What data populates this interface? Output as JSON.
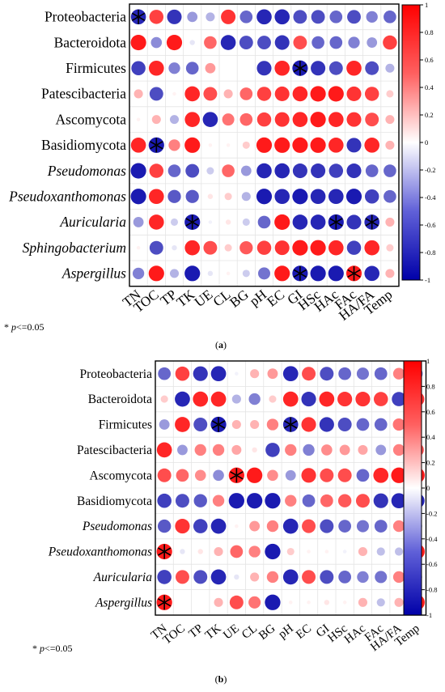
{
  "chart_data": [
    {
      "type": "heatmap",
      "panel_label": "(a)",
      "footnote": "* p<=0.05",
      "columns": [
        "TN",
        "TOC",
        "TP",
        "TK",
        "UE",
        "CL",
        "BG",
        "pH",
        "EC",
        "GI",
        "HSc",
        "HAc",
        "FAc",
        "HA/FA",
        "Temp"
      ],
      "rows": [
        "Proteobacteria",
        "Bacteroidota",
        "Firmicutes",
        "Patescibacteria",
        "Ascomycota",
        "Basidiomycota",
        "Pseudomonas",
        "Pseudoxanthomonas",
        "Auricularia",
        "Sphingobacterium",
        "Aspergillus"
      ],
      "italic_rows": [
        "Pseudomonas",
        "Pseudoxanthomonas",
        "Auricularia",
        "Sphingobacterium",
        "Aspergillus"
      ],
      "values": [
        [
          -0.85,
          0.75,
          -0.8,
          -0.4,
          -0.3,
          0.8,
          -0.6,
          -0.85,
          -0.85,
          -0.7,
          -0.7,
          -0.6,
          -0.7,
          -0.5,
          -0.6
        ],
        [
          0.9,
          -0.45,
          0.9,
          -0.1,
          0.6,
          -0.85,
          -0.7,
          -0.7,
          -0.8,
          0.7,
          -0.6,
          -0.6,
          -0.5,
          -0.4,
          0.75
        ],
        [
          -0.75,
          0.85,
          -0.5,
          -0.6,
          0.4,
          0,
          0,
          -0.8,
          0.85,
          -0.9,
          -0.8,
          -0.7,
          0.85,
          -0.7,
          -0.3
        ],
        [
          0.3,
          -0.7,
          0.05,
          0.85,
          0.7,
          0.3,
          0.6,
          0.75,
          0.8,
          0.85,
          0.9,
          0.9,
          0.8,
          0.75,
          0.2
        ],
        [
          0.05,
          0.3,
          -0.3,
          0.85,
          -0.85,
          0.55,
          0.6,
          0.75,
          0.8,
          0.85,
          0.9,
          0.85,
          0.8,
          0.7,
          0.3
        ],
        [
          0.85,
          -0.9,
          0.5,
          0.9,
          0.05,
          0.05,
          0.2,
          0.9,
          0.9,
          0.9,
          0.9,
          0.85,
          -0.8,
          0.85,
          0.3
        ],
        [
          -0.9,
          0.75,
          -0.6,
          -0.7,
          -0.2,
          0.6,
          -0.4,
          -0.85,
          -0.85,
          -0.8,
          -0.8,
          -0.75,
          -0.8,
          -0.6,
          -0.6
        ],
        [
          -0.9,
          0.85,
          -0.65,
          -0.65,
          0.1,
          0.2,
          -0.3,
          -0.9,
          -0.85,
          -0.9,
          -0.85,
          -0.85,
          -0.9,
          -0.75,
          -0.6
        ],
        [
          -0.4,
          0.85,
          -0.2,
          -0.9,
          -0.05,
          0.1,
          -0.2,
          -0.6,
          0.9,
          -0.85,
          -0.85,
          -0.9,
          -0.8,
          -0.85,
          0.3
        ],
        [
          0.05,
          -0.7,
          -0.1,
          0.85,
          0.7,
          0.2,
          0.65,
          0.75,
          0.8,
          0.9,
          0.9,
          0.85,
          -0.75,
          0.85,
          0.2
        ],
        [
          -0.5,
          0.9,
          -0.3,
          -0.9,
          -0.1,
          0.05,
          -0.2,
          -0.55,
          0.9,
          -0.9,
          -0.9,
          -0.9,
          0.9,
          -0.85,
          0.3
        ]
      ],
      "significant": [
        [
          0,
          0
        ],
        [
          2,
          9
        ],
        [
          5,
          1
        ],
        [
          8,
          3
        ],
        [
          8,
          11
        ],
        [
          8,
          13
        ],
        [
          10,
          9
        ],
        [
          10,
          12
        ]
      ],
      "colorbar_ticks": [
        1,
        0.8,
        0.6,
        0.4,
        0.2,
        0,
        -0.2,
        -0.4,
        -0.6,
        -0.8,
        -1
      ],
      "colorbar_tick_labels": [
        "1",
        "0.8",
        "0.6",
        "0.4",
        "0.2",
        "0",
        "-0.2",
        "-0.4",
        "-0.6",
        "-0.8",
        "-1"
      ],
      "range": [
        -1,
        1
      ],
      "colors": {
        "negative": "#0000a8",
        "neutral": "#ffffff",
        "positive": "#ff0000"
      }
    },
    {
      "type": "heatmap",
      "panel_label": "(b)",
      "footnote": "* p<=0.05",
      "columns": [
        "TN",
        "TOC",
        "TP",
        "TK",
        "UE",
        "CL",
        "BG",
        "pH",
        "EC",
        "GI",
        "HSc",
        "HAc",
        "FAc",
        "HA/FA",
        "Temp"
      ],
      "rows": [
        "Proteobacteria",
        "Bacteroidota",
        "Firmicutes",
        "Patescibacteria",
        "Ascomycota",
        "Basidiomycota",
        "Pseudomonas",
        "Pseudoxanthomonas",
        "Auricularia",
        "Aspergillus"
      ],
      "italic_rows": [
        "Pseudomonas",
        "Pseudoxanthomonas",
        "Auricularia",
        "Aspergillus"
      ],
      "values": [
        [
          -0.6,
          0.75,
          -0.8,
          -0.85,
          -0.05,
          0.3,
          0.4,
          -0.85,
          0.7,
          -0.7,
          -0.6,
          -0.55,
          -0.6,
          0.5,
          -0.5
        ],
        [
          0.2,
          -0.85,
          0.85,
          0.85,
          -0.3,
          -0.5,
          0.2,
          0.85,
          -0.8,
          0.85,
          0.8,
          0.8,
          0.75,
          -0.75,
          0.8
        ],
        [
          -0.4,
          0.85,
          -0.7,
          -0.9,
          0.3,
          0.3,
          0.5,
          -0.85,
          0.8,
          -0.8,
          -0.7,
          -0.6,
          -0.6,
          0.55,
          0
        ],
        [
          0.85,
          -0.4,
          0.5,
          0.5,
          0.35,
          0.1,
          -0.75,
          0.5,
          -0.5,
          0.45,
          0.4,
          0.35,
          -0.4,
          0.5,
          0.7
        ],
        [
          0.7,
          0.6,
          0.45,
          -0.45,
          0.9,
          0.9,
          0.45,
          -0.4,
          0.8,
          0.7,
          0.7,
          -0.6,
          0.85,
          0.9,
          0.9
        ],
        [
          -0.75,
          -0.7,
          -0.65,
          0.5,
          -0.9,
          -0.9,
          -0.9,
          0.5,
          -0.6,
          0.6,
          0.65,
          0.7,
          -0.8,
          -0.85,
          -0.85
        ],
        [
          -0.65,
          0.8,
          -0.75,
          -0.85,
          0.05,
          0.4,
          0.5,
          -0.85,
          0.7,
          -0.7,
          -0.6,
          -0.55,
          -0.6,
          0.5,
          -0.4
        ],
        [
          0.9,
          -0.1,
          0.1,
          0.3,
          0.6,
          0.5,
          -0.9,
          0.2,
          0.05,
          0.05,
          -0.05,
          0.3,
          -0.25,
          -0.25,
          0.9
        ],
        [
          -0.75,
          0.7,
          -0.7,
          -0.85,
          -0.1,
          0.3,
          0.5,
          -0.85,
          0.7,
          -0.7,
          -0.6,
          -0.5,
          -0.55,
          0.5,
          -0.4
        ],
        [
          0.9,
          0,
          0,
          0.3,
          0.7,
          0.55,
          -0.9,
          0.05,
          0.05,
          0.1,
          0.05,
          0.3,
          -0.25,
          0.3,
          0.9
        ]
      ],
      "significant": [
        [
          2,
          3
        ],
        [
          2,
          7
        ],
        [
          4,
          4
        ],
        [
          7,
          0
        ],
        [
          9,
          0
        ]
      ],
      "colorbar_ticks": [
        1,
        0.8,
        0.6,
        0.4,
        0.2,
        0,
        -0.2,
        -0.4,
        -0.6,
        -0.8,
        -1
      ],
      "colorbar_tick_labels": [
        "1",
        "0.8",
        "0.6",
        "0.4",
        "0.2",
        "0",
        "-0.2",
        "-0.4",
        "-0.6",
        "-0.8",
        "-1"
      ],
      "range": [
        -1,
        1
      ],
      "colors": {
        "negative": "#0000a8",
        "neutral": "#ffffff",
        "positive": "#ff0000"
      }
    }
  ]
}
